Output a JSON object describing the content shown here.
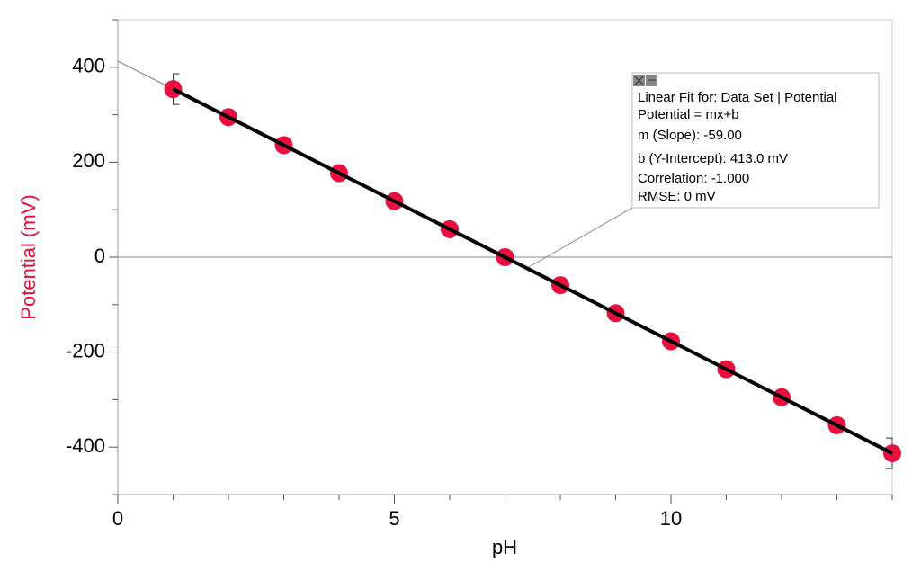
{
  "chart_data": {
    "type": "scatter",
    "x_label": "pH",
    "y_label": "Potential (mV)",
    "series": [
      {
        "name": "Data Set",
        "color": "#e8103c",
        "x": [
          1,
          2,
          3,
          4,
          5,
          6,
          7,
          8,
          9,
          10,
          11,
          12,
          13,
          14
        ],
        "values": [
          354,
          295,
          236,
          177,
          118,
          59,
          0,
          -59,
          -118,
          -177,
          -236,
          -295,
          -354,
          -413
        ]
      }
    ],
    "fit": {
      "slope": -59.0,
      "intercept": 413.0,
      "range": [
        1,
        14
      ]
    },
    "annotation": [
      "Linear Fit for: Data Set | Potential",
      "Potential = mx+b",
      "m (Slope): -59.00",
      "b (Y-Intercept): 413.0 mV",
      "Correlation: -1.000",
      "RMSE: 0 mV"
    ],
    "xlim": [
      0,
      14
    ],
    "ylim": [
      -500,
      500
    ],
    "xticks": [
      0,
      5,
      10
    ],
    "yticks": [
      -400,
      -200,
      0,
      200,
      400
    ],
    "x_minor_ticks": [
      1,
      2,
      3,
      4,
      6,
      7,
      8,
      9,
      11,
      12,
      13,
      14
    ],
    "y_minor_ticks": [
      -500,
      -300,
      -100,
      100,
      300,
      500
    ]
  }
}
